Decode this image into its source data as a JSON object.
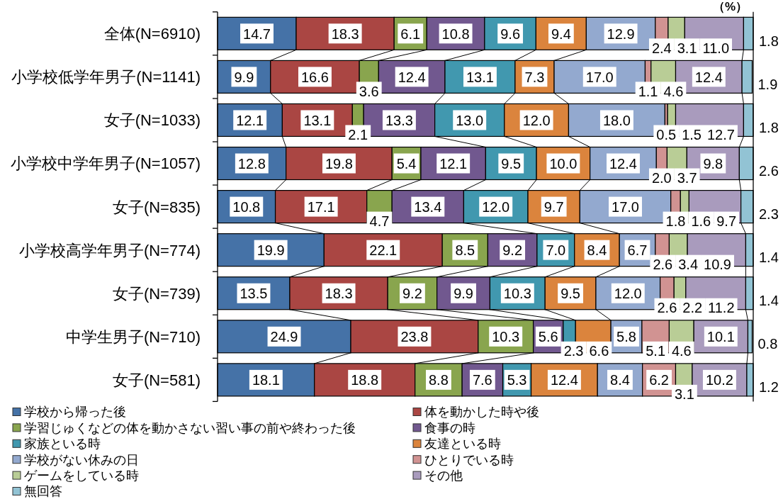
{
  "chart_data": {
    "type": "bar",
    "orientation": "horizontal",
    "stacked": true,
    "xlabel": "（%）",
    "xlim": [
      0,
      100.1
    ],
    "legend": "bottom",
    "tick_labels": "y",
    "categories": [
      "全体(N=6910)",
      "小学校低学年男子(N=1141)",
      "女子(N=1033)",
      "小学校中学年男子(N=1057)",
      "女子(N=835)",
      "小学校高学年男子(N=774)",
      "女子(N=739)",
      "中学生男子(N=710)",
      "女子(N=581)"
    ],
    "series": [
      {
        "name": "学校から帰った後",
        "color": "#4572a7",
        "values": [
          14.7,
          9.9,
          12.1,
          12.8,
          10.8,
          19.9,
          13.5,
          24.9,
          18.1
        ],
        "value_labels": [
          "14.7",
          "9.9",
          "12.1",
          "12.8",
          "10.8",
          "19.9",
          "13.5",
          "24.9",
          "18.1"
        ]
      },
      {
        "name": "体を動かした時や後",
        "color": "#aa4643",
        "values": [
          18.3,
          16.6,
          13.1,
          19.8,
          17.1,
          22.1,
          18.3,
          23.8,
          18.8
        ],
        "value_labels": [
          "18.3",
          "16.6",
          "13.1",
          "19.8",
          "17.1",
          "22.1",
          "18.3",
          "23.8",
          "18.8"
        ]
      },
      {
        "name": "学習じゅくなどの体を動かさない習い事の前や終わった後",
        "color": "#89a54e",
        "values": [
          6.1,
          3.6,
          2.1,
          5.4,
          4.7,
          8.5,
          9.2,
          10.3,
          8.8
        ],
        "value_labels": [
          "6.1",
          "3.6",
          "2.1",
          "5.4",
          "4.7",
          "8.5",
          "9.2",
          "10.3",
          "8.8"
        ]
      },
      {
        "name": "食事の時",
        "color": "#71588f",
        "values": [
          10.8,
          12.4,
          13.3,
          12.1,
          13.4,
          9.2,
          9.9,
          5.6,
          7.6
        ],
        "value_labels": [
          "10.8",
          "12.4",
          "13.3",
          "12.1",
          "13.4",
          "9.2",
          "9.9",
          "5.6",
          "7.6"
        ]
      },
      {
        "name": "家族といる時",
        "color": "#4198af",
        "values": [
          9.6,
          13.1,
          13.0,
          9.5,
          12.0,
          7.0,
          10.3,
          2.3,
          5.3
        ],
        "value_labels": [
          "9.6",
          "13.1",
          "13.0",
          "9.5",
          "12.0",
          "7.0",
          "10.3",
          "2.3",
          "5.3"
        ]
      },
      {
        "name": "友達といる時",
        "color": "#db843d",
        "values": [
          9.4,
          7.3,
          12.0,
          10.0,
          9.7,
          8.4,
          9.5,
          6.6,
          12.4
        ],
        "value_labels": [
          "9.4",
          "7.3",
          "12.0",
          "10.0",
          "9.7",
          "8.4",
          "9.5",
          "6.6",
          "12.4"
        ]
      },
      {
        "name": "学校がない休みの日",
        "color": "#93a9cf",
        "values": [
          12.9,
          17.0,
          18.0,
          12.4,
          17.0,
          6.7,
          12.0,
          5.8,
          8.4
        ],
        "value_labels": [
          "12.9",
          "17.0",
          "18.0",
          "12.4",
          "17.0",
          "6.7",
          "12.0",
          "5.8",
          "8.4"
        ]
      },
      {
        "name": "ひとりでいる時",
        "color": "#d19392",
        "values": [
          2.4,
          1.1,
          0.5,
          2.0,
          1.8,
          2.6,
          2.6,
          5.1,
          6.2
        ],
        "value_labels": [
          "2.4",
          "1.1",
          "0.5",
          "2.0",
          "1.8",
          "2.6",
          "2.6",
          "5.1",
          "6.2"
        ]
      },
      {
        "name": "ゲームをしている時",
        "color": "#b9cd96",
        "values": [
          3.1,
          4.6,
          1.5,
          3.7,
          1.6,
          3.4,
          2.2,
          4.6,
          3.1
        ],
        "value_labels": [
          "3.1",
          "4.6",
          "1.5",
          "3.7",
          "1.6",
          "3.4",
          "2.2",
          "4.6",
          "3.1"
        ]
      },
      {
        "name": "その他",
        "color": "#a99bbd",
        "values": [
          11.0,
          12.4,
          12.7,
          9.8,
          9.7,
          10.9,
          11.2,
          10.1,
          10.2
        ],
        "value_labels": [
          "11.0",
          "12.4",
          "12.7",
          "9.8",
          "9.7",
          "10.9",
          "11.2",
          "10.1",
          "10.2"
        ]
      },
      {
        "name": "無回答",
        "color": "#92c3d4",
        "values": [
          1.8,
          1.9,
          1.8,
          2.6,
          2.3,
          1.4,
          1.4,
          0.8,
          1.2
        ],
        "value_labels": [
          "1.8",
          "1.9",
          "1.8",
          "2.6",
          "2.3",
          "1.4",
          "1.4",
          "0.8",
          "1.2"
        ]
      }
    ]
  }
}
